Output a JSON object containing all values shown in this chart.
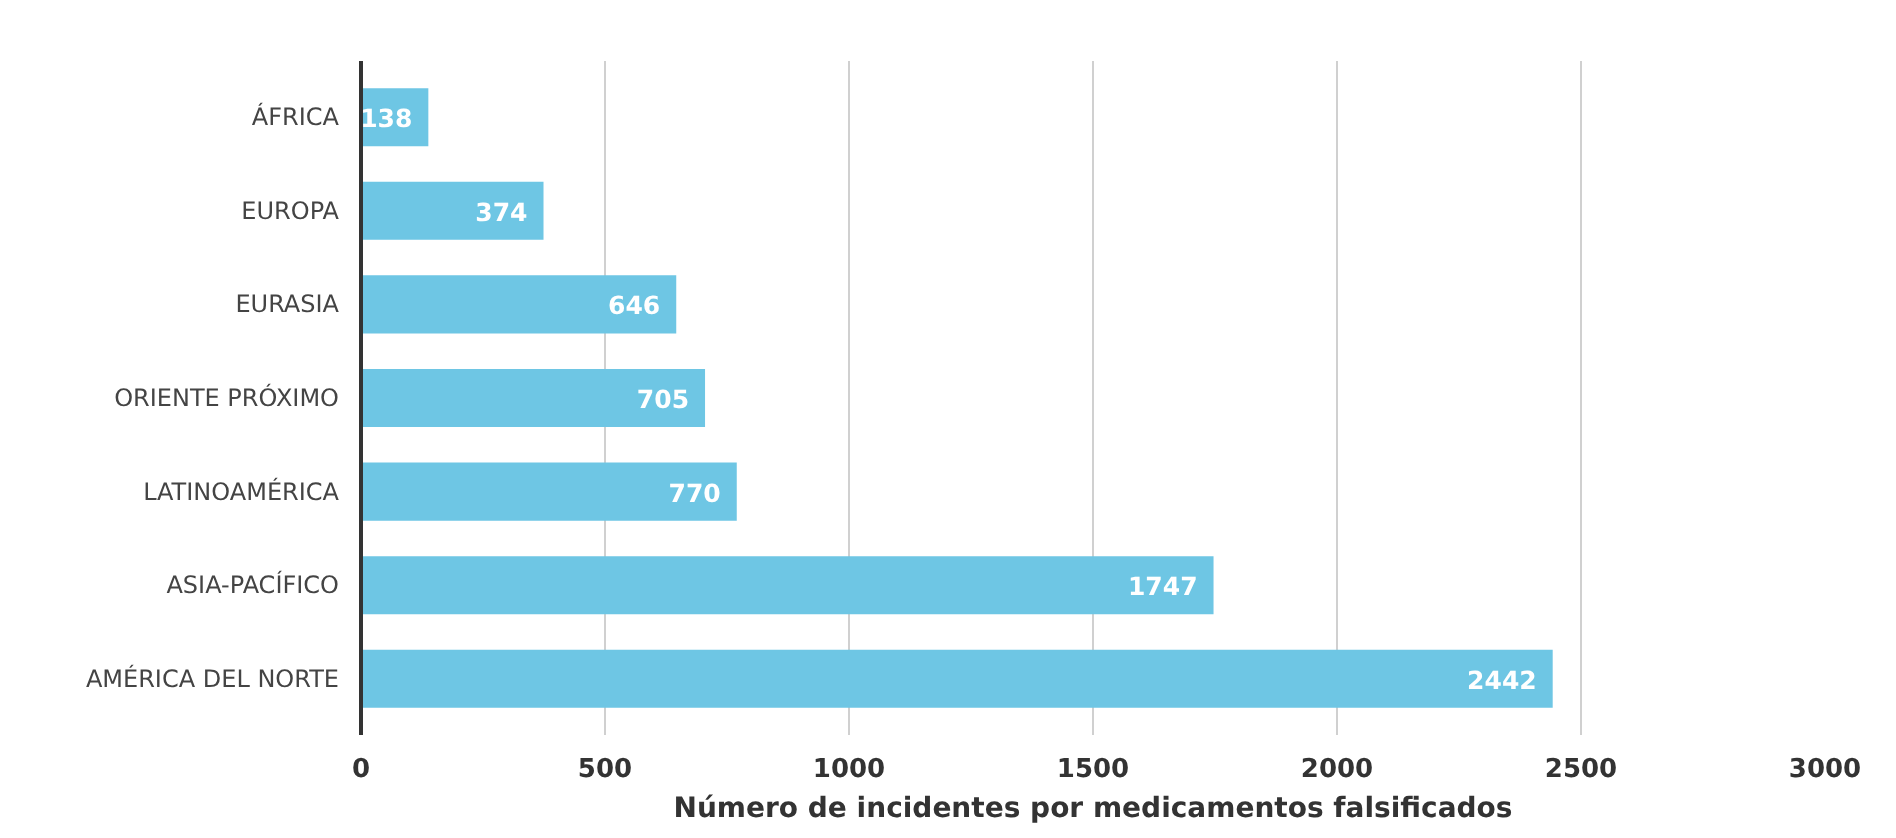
{
  "chart_data": {
    "type": "bar",
    "orientation": "horizontal",
    "xlabel": "Número de incidentes por medicamentos falsificados",
    "categories": [
      "ÁFRICA",
      "EUROPA",
      "EURASIA",
      "ORIENTE PRÓXIMO",
      "LATINOAMÉRICA",
      "ASIA-PACÍFICO",
      "AMÉRICA DEL NORTE"
    ],
    "values": [
      138,
      374,
      646,
      705,
      770,
      1747,
      2442
    ],
    "color": "#6ec6e4",
    "xlim": [
      0,
      3000
    ],
    "xticks": [
      0,
      500,
      1000,
      1500,
      2000,
      2500,
      3000
    ],
    "grid": "x",
    "data_labels": true
  }
}
